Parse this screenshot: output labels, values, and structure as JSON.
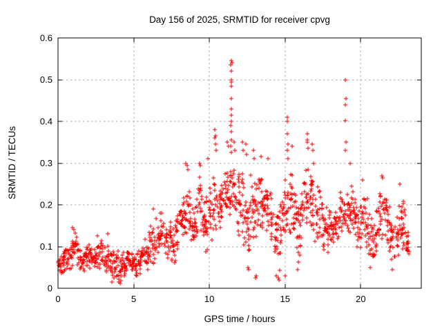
{
  "chart_data": {
    "type": "scatter",
    "title": "Day 156 of 2025, SRMTID for receiver cpvg",
    "xlabel": "GPS time / hours",
    "ylabel": "SRMTID / TECUs",
    "xlim": [
      0,
      24
    ],
    "ylim": [
      0,
      0.6
    ],
    "xticks": [
      0,
      5,
      10,
      15,
      20
    ],
    "xtick_labels": [
      "0",
      "5",
      "10",
      "15",
      "20"
    ],
    "yticks": [
      0,
      0.1,
      0.2,
      0.3,
      0.4,
      0.5,
      0.6
    ],
    "ytick_labels": [
      "0",
      "0.1",
      "0.2",
      "0.3",
      "0.4",
      "0.5",
      "0.6"
    ],
    "grid": true,
    "legend": "none",
    "series_name": "SRMTID",
    "marker": {
      "shape": "plus",
      "size": 7,
      "color": "#ff0000"
    },
    "colors": {
      "marker": "#ff0000",
      "grid": "#a8a8a8",
      "border": "#000000",
      "background": "#ffffff",
      "text": "#000000"
    },
    "data_summary_note": "Dense scatter of ~1400 red plus markers at ~1-min cadence, 0 to ~23.25 h. Bands give [start_hour, min_value, max_value] of the dense envelope per 0.25 h bin; outliers are individually visible spike/tail points [hour, value]. Peak 0.545 TECU at 11.45 h; secondary spikes 0.41 at 15.15 h and 0.50 at 19.0 h; quiet level ~0.03-0.10 before 5.5 h.",
    "band_width": 0.25,
    "points_per_band": 15,
    "seed": 7,
    "bands": [
      [
        0.0,
        0.03,
        0.09
      ],
      [
        0.25,
        0.03,
        0.09
      ],
      [
        0.5,
        0.04,
        0.1
      ],
      [
        0.75,
        0.04,
        0.13
      ],
      [
        1.0,
        0.05,
        0.14
      ],
      [
        1.25,
        0.04,
        0.11
      ],
      [
        1.5,
        0.04,
        0.1
      ],
      [
        1.75,
        0.04,
        0.11
      ],
      [
        2.0,
        0.04,
        0.11
      ],
      [
        2.25,
        0.04,
        0.1
      ],
      [
        2.5,
        0.04,
        0.11
      ],
      [
        2.75,
        0.04,
        0.12
      ],
      [
        3.0,
        0.03,
        0.1
      ],
      [
        3.25,
        0.03,
        0.11
      ],
      [
        3.5,
        0.02,
        0.09
      ],
      [
        3.75,
        0.02,
        0.1
      ],
      [
        4.0,
        0.01,
        0.08
      ],
      [
        4.25,
        0.02,
        0.09
      ],
      [
        4.5,
        0.03,
        0.1
      ],
      [
        4.75,
        0.03,
        0.09
      ],
      [
        5.0,
        0.02,
        0.09
      ],
      [
        5.25,
        0.03,
        0.1
      ],
      [
        5.5,
        0.04,
        0.12
      ],
      [
        5.75,
        0.04,
        0.13
      ],
      [
        6.0,
        0.05,
        0.16
      ],
      [
        6.25,
        0.05,
        0.18
      ],
      [
        6.5,
        0.07,
        0.18
      ],
      [
        6.75,
        0.08,
        0.19
      ],
      [
        7.0,
        0.06,
        0.17
      ],
      [
        7.25,
        0.07,
        0.19
      ],
      [
        7.5,
        0.05,
        0.16
      ],
      [
        7.75,
        0.08,
        0.2
      ],
      [
        8.0,
        0.1,
        0.22
      ],
      [
        8.25,
        0.1,
        0.24
      ],
      [
        8.5,
        0.12,
        0.26
      ],
      [
        8.75,
        0.1,
        0.22
      ],
      [
        9.0,
        0.1,
        0.24
      ],
      [
        9.25,
        0.12,
        0.28
      ],
      [
        9.5,
        0.1,
        0.24
      ],
      [
        9.75,
        0.08,
        0.22
      ],
      [
        10.0,
        0.1,
        0.26
      ],
      [
        10.25,
        0.12,
        0.32
      ],
      [
        10.5,
        0.12,
        0.3
      ],
      [
        10.75,
        0.12,
        0.28
      ],
      [
        11.0,
        0.15,
        0.3
      ],
      [
        11.25,
        0.15,
        0.3
      ],
      [
        11.5,
        0.15,
        0.31
      ],
      [
        11.75,
        0.12,
        0.28
      ],
      [
        12.0,
        0.12,
        0.3
      ],
      [
        12.25,
        0.1,
        0.28
      ],
      [
        12.5,
        0.06,
        0.26
      ],
      [
        12.75,
        0.12,
        0.3
      ],
      [
        13.0,
        0.1,
        0.28
      ],
      [
        13.25,
        0.14,
        0.3
      ],
      [
        13.5,
        0.12,
        0.28
      ],
      [
        13.75,
        0.1,
        0.26
      ],
      [
        14.0,
        0.1,
        0.24
      ],
      [
        14.25,
        0.06,
        0.22
      ],
      [
        14.5,
        0.04,
        0.24
      ],
      [
        14.75,
        0.1,
        0.26
      ],
      [
        15.0,
        0.1,
        0.28
      ],
      [
        15.25,
        0.1,
        0.3
      ],
      [
        15.5,
        0.1,
        0.26
      ],
      [
        15.75,
        0.06,
        0.24
      ],
      [
        16.0,
        0.1,
        0.26
      ],
      [
        16.25,
        0.12,
        0.3
      ],
      [
        16.5,
        0.12,
        0.3
      ],
      [
        16.75,
        0.1,
        0.28
      ],
      [
        17.0,
        0.1,
        0.26
      ],
      [
        17.25,
        0.1,
        0.24
      ],
      [
        17.5,
        0.08,
        0.22
      ],
      [
        17.75,
        0.08,
        0.2
      ],
      [
        18.0,
        0.08,
        0.2
      ],
      [
        18.25,
        0.1,
        0.22
      ],
      [
        18.5,
        0.1,
        0.24
      ],
      [
        18.75,
        0.1,
        0.26
      ],
      [
        19.0,
        0.1,
        0.26
      ],
      [
        19.25,
        0.12,
        0.26
      ],
      [
        19.5,
        0.1,
        0.24
      ],
      [
        19.75,
        0.08,
        0.22
      ],
      [
        20.0,
        0.1,
        0.24
      ],
      [
        20.25,
        0.08,
        0.22
      ],
      [
        20.5,
        0.06,
        0.2
      ],
      [
        20.75,
        0.06,
        0.18
      ],
      [
        21.0,
        0.08,
        0.2
      ],
      [
        21.25,
        0.1,
        0.26
      ],
      [
        21.5,
        0.1,
        0.26
      ],
      [
        21.75,
        0.08,
        0.22
      ],
      [
        22.0,
        0.06,
        0.2
      ],
      [
        22.25,
        0.06,
        0.18
      ],
      [
        22.5,
        0.08,
        0.24
      ],
      [
        22.75,
        0.08,
        0.22
      ],
      [
        23.0,
        0.07,
        0.15
      ]
    ],
    "outliers": [
      [
        0.95,
        0.145
      ],
      [
        1.05,
        0.14
      ],
      [
        2.6,
        0.125
      ],
      [
        3.3,
        0.13
      ],
      [
        6.3,
        0.19
      ],
      [
        8.45,
        0.3
      ],
      [
        8.5,
        0.295
      ],
      [
        8.55,
        0.285
      ],
      [
        9.35,
        0.3
      ],
      [
        9.4,
        0.295
      ],
      [
        9.9,
        0.31
      ],
      [
        10.35,
        0.38
      ],
      [
        10.4,
        0.365
      ],
      [
        10.38,
        0.36
      ],
      [
        10.42,
        0.345
      ],
      [
        10.45,
        0.33
      ],
      [
        11.2,
        0.35
      ],
      [
        11.25,
        0.34
      ],
      [
        11.45,
        0.545
      ],
      [
        11.47,
        0.54
      ],
      [
        11.43,
        0.535
      ],
      [
        11.46,
        0.52
      ],
      [
        11.44,
        0.5
      ],
      [
        11.48,
        0.495
      ],
      [
        11.45,
        0.485
      ],
      [
        11.42,
        0.455
      ],
      [
        11.46,
        0.43
      ],
      [
        11.44,
        0.415
      ],
      [
        11.47,
        0.4
      ],
      [
        11.43,
        0.39
      ],
      [
        11.45,
        0.375
      ],
      [
        11.48,
        0.355
      ],
      [
        11.42,
        0.34
      ],
      [
        11.46,
        0.325
      ],
      [
        11.6,
        0.35
      ],
      [
        11.65,
        0.33
      ],
      [
        12.2,
        0.35
      ],
      [
        12.25,
        0.33
      ],
      [
        12.4,
        0.345
      ],
      [
        12.45,
        0.32
      ],
      [
        12.9,
        0.33
      ],
      [
        12.95,
        0.31
      ],
      [
        13.4,
        0.315
      ],
      [
        13.9,
        0.31
      ],
      [
        15.15,
        0.41
      ],
      [
        15.17,
        0.4
      ],
      [
        15.13,
        0.37
      ],
      [
        15.16,
        0.345
      ],
      [
        15.14,
        0.33
      ],
      [
        15.18,
        0.31
      ],
      [
        15.45,
        0.34
      ],
      [
        16.45,
        0.37
      ],
      [
        16.5,
        0.355
      ],
      [
        16.47,
        0.35
      ],
      [
        16.52,
        0.335
      ],
      [
        16.8,
        0.345
      ],
      [
        16.85,
        0.33
      ],
      [
        16.9,
        0.3
      ],
      [
        19.0,
        0.5
      ],
      [
        19.02,
        0.455
      ],
      [
        18.98,
        0.44
      ],
      [
        19.0,
        0.402
      ],
      [
        19.03,
        0.35
      ],
      [
        18.97,
        0.33
      ],
      [
        19.3,
        0.3
      ],
      [
        20.1,
        0.26
      ],
      [
        21.4,
        0.27
      ],
      [
        21.45,
        0.265
      ],
      [
        22.6,
        0.25
      ],
      [
        3.6,
        0.015
      ],
      [
        4.1,
        0.012
      ],
      [
        4.15,
        0.018
      ],
      [
        12.55,
        0.05
      ],
      [
        12.6,
        0.045
      ],
      [
        13.05,
        0.025
      ],
      [
        13.1,
        0.03
      ],
      [
        14.4,
        0.03
      ],
      [
        14.55,
        0.025
      ],
      [
        14.6,
        0.02
      ],
      [
        15.0,
        0.03
      ],
      [
        15.85,
        0.045
      ],
      [
        20.6,
        0.05
      ],
      [
        22.1,
        0.045
      ]
    ]
  }
}
